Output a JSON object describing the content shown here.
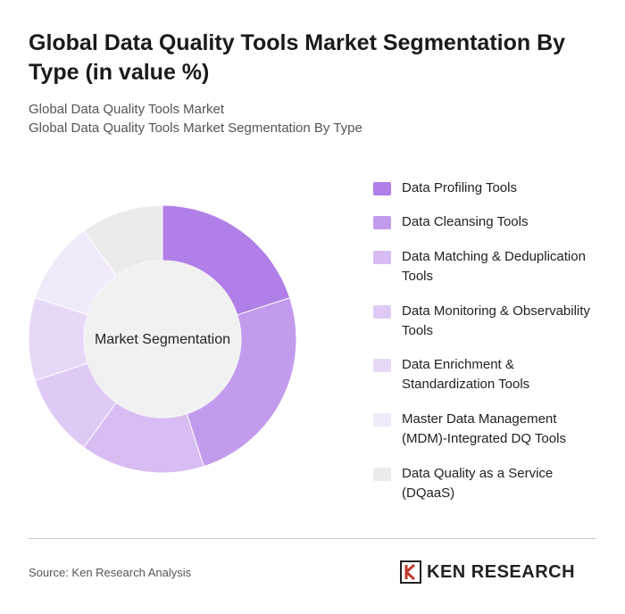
{
  "chart_data": {
    "type": "donut",
    "title": "Global Data Quality Tools Market Segmentation By Type (in value %)",
    "subtitle": [
      "Global Data Quality Tools Market",
      "Global Data Quality Tools Market Segmentation By Type"
    ],
    "center_label": "Market Segmentation",
    "series": [
      {
        "name": "Data Profiling Tools",
        "color": "#b07fe8",
        "values": [
          20
        ]
      },
      {
        "name": "Data Cleansing Tools",
        "color": "#c39bed",
        "values": [
          25
        ]
      },
      {
        "name": "Data Matching & Deduplication Tools",
        "color": "#d7bdf3",
        "values": [
          15
        ]
      },
      {
        "name": "Data Monitoring & Observability Tools",
        "color": "#dfcaf5",
        "values": [
          10
        ]
      },
      {
        "name": "Data Enrichment & Standardization Tools",
        "color": "#e7d8f8",
        "values": [
          10
        ]
      },
      {
        "name": "Master Data Management (MDM)-Integrated DQ Tools",
        "color": "#f1eafb",
        "values": [
          10
        ]
      },
      {
        "name": "Data Quality as a Service (DQaaS)",
        "color": "#ebebeb",
        "values": [
          10
        ]
      }
    ],
    "source": "Source: Ken Research Analysis",
    "logo": "KEN RESEARCH"
  }
}
